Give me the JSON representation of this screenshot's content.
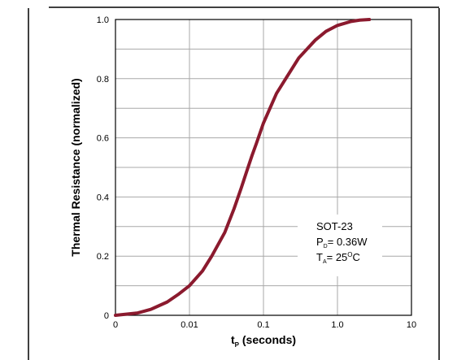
{
  "chart_data": {
    "type": "line",
    "xscale": "log",
    "xlim": [
      0.001,
      10
    ],
    "ylim": [
      0,
      1.0
    ],
    "grid": true,
    "xlabel": {
      "main": "t",
      "sub": "P",
      "rest": " (seconds)"
    },
    "ylabel": "Thermal Resistance (normalized)",
    "xticks": [
      {
        "value": 0.001,
        "label": "0"
      },
      {
        "value": 0.01,
        "label": "0.01"
      },
      {
        "value": 0.1,
        "label": "0.1"
      },
      {
        "value": 1,
        "label": "1.0"
      },
      {
        "value": 10,
        "label": "10"
      }
    ],
    "yticks": [
      {
        "value": 0,
        "label": "0"
      },
      {
        "value": 0.2,
        "label": "0.2"
      },
      {
        "value": 0.4,
        "label": "0.4"
      },
      {
        "value": 0.6,
        "label": "0.6"
      },
      {
        "value": 0.8,
        "label": "0.8"
      },
      {
        "value": 1.0,
        "label": "1.0"
      }
    ],
    "series": [
      {
        "color": "#8b1a2e",
        "x": [
          0.001,
          0.002,
          0.003,
          0.005,
          0.007,
          0.01,
          0.015,
          0.02,
          0.03,
          0.04,
          0.05,
          0.06,
          0.07,
          0.08,
          0.1,
          0.15,
          0.2,
          0.3,
          0.5,
          0.7,
          1.0,
          1.5,
          2.0,
          2.7
        ],
        "y": [
          0.0,
          0.008,
          0.02,
          0.045,
          0.07,
          0.1,
          0.15,
          0.2,
          0.28,
          0.36,
          0.43,
          0.49,
          0.54,
          0.58,
          0.65,
          0.75,
          0.8,
          0.87,
          0.93,
          0.96,
          0.98,
          0.993,
          0.998,
          1.0
        ]
      }
    ],
    "annotation": {
      "line1": "SOT-23",
      "line2": {
        "main": "P",
        "sub": "D",
        "rest": "= 0.36W"
      },
      "line3": {
        "main": "T",
        "sub": "A",
        "rest1": "= 25",
        "sup": "O",
        "rest2": "C"
      }
    }
  }
}
